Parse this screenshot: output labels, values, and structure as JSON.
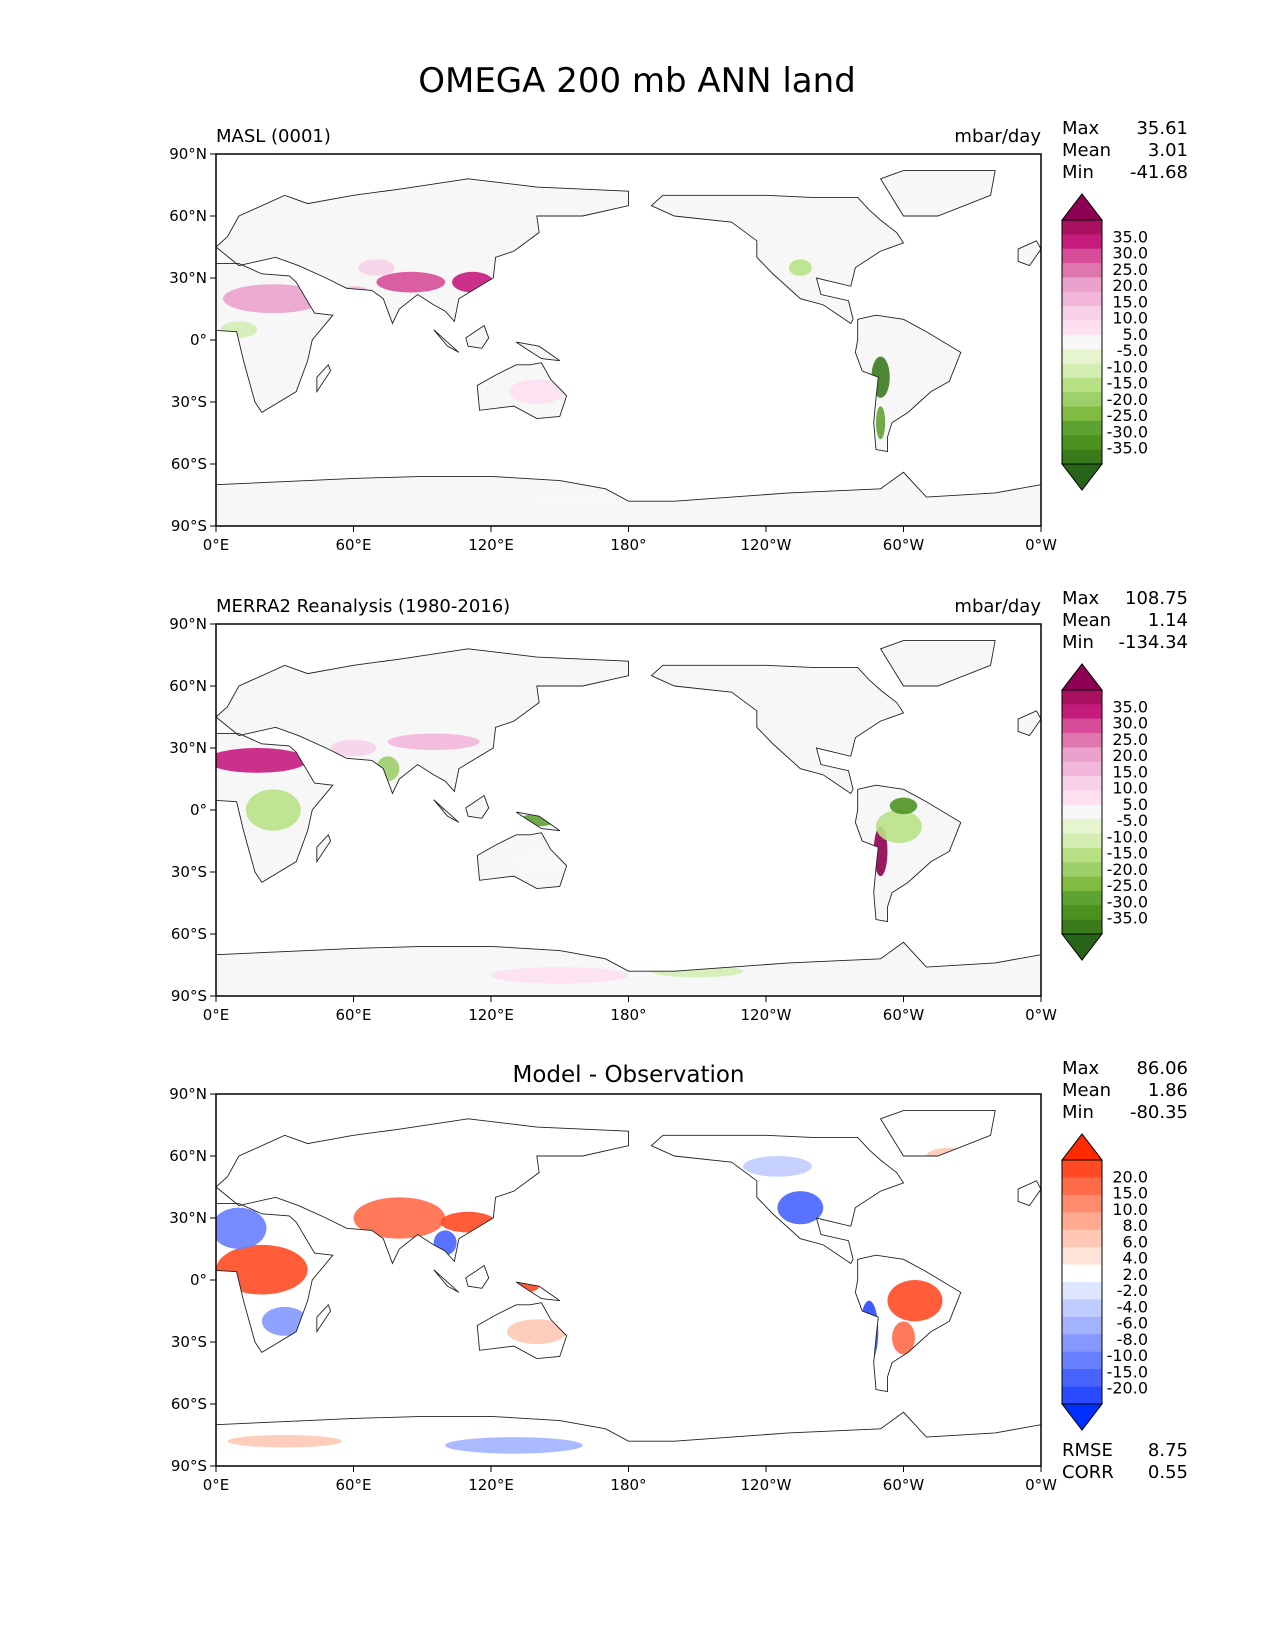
{
  "title": "OMEGA 200 mb ANN land",
  "lon_ticks": [
    "0°E",
    "60°E",
    "120°E",
    "180°",
    "120°W",
    "60°W",
    "0°W"
  ],
  "lat_ticks": [
    "90°N",
    "60°N",
    "30°N",
    "0°",
    "30°S",
    "60°S",
    "90°S"
  ],
  "panels": [
    {
      "left_title": "MASL (0001)",
      "center_title": "",
      "right_title": "mbar/day",
      "colormap": "PiYG_r",
      "stats": [
        {
          "label": "Max",
          "value": "35.61"
        },
        {
          "label": "Mean",
          "value": "3.01"
        },
        {
          "label": "Min",
          "value": "-41.68"
        }
      ],
      "colorbar_labels": [
        "35.0",
        "30.0",
        "25.0",
        "20.0",
        "15.0",
        "10.0",
        "5.0",
        "-5.0",
        "-10.0",
        "-15.0",
        "-20.0",
        "-25.0",
        "-30.0",
        "-35.0"
      ],
      "colorbar_colors": [
        "#8e0152",
        "#a8115f",
        "#c51b7d",
        "#d64c98",
        "#de77ae",
        "#eaa1cb",
        "#f1b6da",
        "#f7d1e7",
        "#fde0ef",
        "#f7f7f7",
        "#e6f5d0",
        "#d3edb3",
        "#b8e186",
        "#9dcf6b",
        "#7fbc41",
        "#5fa234",
        "#4d9221",
        "#3a7a1b",
        "#276419"
      ]
    },
    {
      "left_title": "MERRA2 Reanalysis (1980-2016)",
      "center_title": "",
      "right_title": "mbar/day",
      "colormap": "PiYG_r",
      "stats": [
        {
          "label": "Max",
          "value": "108.75"
        },
        {
          "label": "Mean",
          "value": "1.14"
        },
        {
          "label": "Min",
          "value": "-134.34"
        }
      ],
      "colorbar_labels": [
        "35.0",
        "30.0",
        "25.0",
        "20.0",
        "15.0",
        "10.0",
        "5.0",
        "-5.0",
        "-10.0",
        "-15.0",
        "-20.0",
        "-25.0",
        "-30.0",
        "-35.0"
      ],
      "colorbar_colors": [
        "#8e0152",
        "#a8115f",
        "#c51b7d",
        "#d64c98",
        "#de77ae",
        "#eaa1cb",
        "#f1b6da",
        "#f7d1e7",
        "#fde0ef",
        "#f7f7f7",
        "#e6f5d0",
        "#d3edb3",
        "#b8e186",
        "#9dcf6b",
        "#7fbc41",
        "#5fa234",
        "#4d9221",
        "#3a7a1b",
        "#276419"
      ]
    },
    {
      "left_title": "",
      "center_title": "Model - Observation",
      "right_title": "",
      "colormap": "bwr",
      "stats": [
        {
          "label": "Max",
          "value": "86.06"
        },
        {
          "label": "Mean",
          "value": "1.86"
        },
        {
          "label": "Min",
          "value": "-80.35"
        }
      ],
      "colorbar_labels": [
        "20.0",
        "15.0",
        "10.0",
        "8.0",
        "6.0",
        "4.0",
        "2.0",
        "-2.0",
        "-4.0",
        "-6.0",
        "-8.0",
        "-10.0",
        "-15.0",
        "-20.0"
      ],
      "colorbar_colors": [
        "#ff2a00",
        "#ff4a24",
        "#ff6a48",
        "#ff8a6c",
        "#ffaa90",
        "#ffc8b4",
        "#ffe3d8",
        "#ffffff",
        "#dde5ff",
        "#c0ccff",
        "#a2b2ff",
        "#8498ff",
        "#667eff",
        "#4864ff",
        "#2a4aff",
        "#0030ff"
      ],
      "bottom_stats": [
        {
          "label": "RMSE",
          "value": "8.75"
        },
        {
          "label": "CORR",
          "value": "0.55"
        }
      ]
    }
  ]
}
